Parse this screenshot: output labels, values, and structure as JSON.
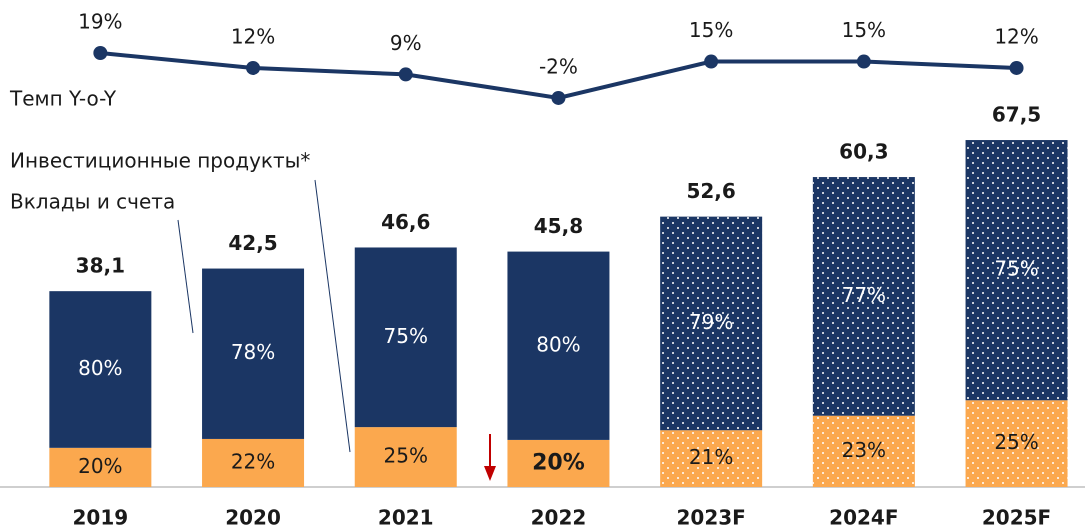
{
  "chart_data": {
    "type": "stacked-bar",
    "categories": [
      "2019",
      "2020",
      "2021",
      "2022",
      "2023F",
      "2024F",
      "2025F"
    ],
    "forecast": [
      false,
      false,
      false,
      false,
      true,
      true,
      true
    ],
    "totals": {
      "values": [
        38.1,
        42.5,
        46.6,
        45.8,
        52.6,
        60.3,
        67.5
      ],
      "value_labels": [
        "38,1",
        "42,5",
        "46,6",
        "45,8",
        "52,6",
        "60,3",
        "67,5"
      ]
    },
    "series": [
      {
        "name": "Вклады и счета",
        "color": "#fba84e",
        "values": [
          20,
          22,
          25,
          20,
          21,
          23,
          25
        ],
        "value_labels": [
          "20%",
          "22%",
          "25%",
          "20%",
          "21%",
          "23%",
          "25%"
        ]
      },
      {
        "name": "Инвестиционные продукты*",
        "color": "#1b3664",
        "values": [
          80,
          78,
          75,
          80,
          79,
          77,
          75
        ],
        "value_labels": [
          "80%",
          "78%",
          "75%",
          "80%",
          "79%",
          "77%",
          "75%"
        ]
      }
    ],
    "line": {
      "name": "Темп Y-o-Y",
      "color": "#1b3664",
      "values": [
        19,
        12,
        9,
        -2,
        15,
        15,
        12
      ],
      "value_labels": [
        "19%",
        "12%",
        "9%",
        "-2%",
        "15%",
        "15%",
        "12%"
      ]
    }
  }
}
